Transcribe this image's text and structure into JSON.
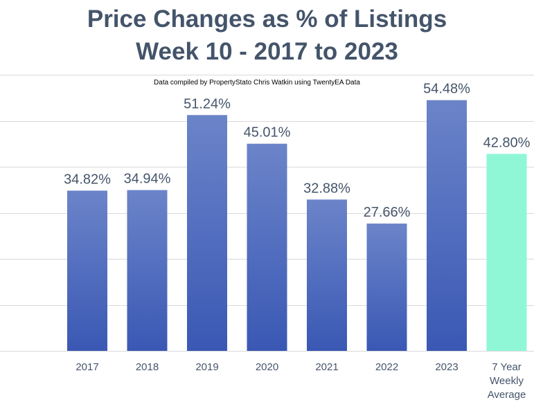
{
  "chart_data": {
    "type": "bar",
    "title_lines": [
      "Price Changes as % of Listings",
      "Week 10 - 2017 to 2023"
    ],
    "subtitle": "Data compiled by PropertyStato Chris Watkin using TwentyEA Data",
    "categories": [
      [
        "2017"
      ],
      [
        "2018"
      ],
      [
        "2019"
      ],
      [
        "2020"
      ],
      [
        "2021"
      ],
      [
        "2022"
      ],
      [
        "2023"
      ],
      [
        "7 Year",
        "Weekly",
        "Average"
      ]
    ],
    "values": [
      34.82,
      34.94,
      51.24,
      45.01,
      32.88,
      27.66,
      54.48,
      42.8
    ],
    "labels": [
      "34.82%",
      "34.94%",
      "51.24%",
      "45.01%",
      "32.88%",
      "27.66%",
      "54.48%",
      "42.80%"
    ],
    "ylim": [
      0,
      60
    ],
    "grid": true,
    "colors": {
      "bar_top": "#6b84c9",
      "bar_bottom": "#3a58b4",
      "highlight": "#8ff7d6",
      "text": "#44546a",
      "grid": "#d9d9d9"
    }
  }
}
